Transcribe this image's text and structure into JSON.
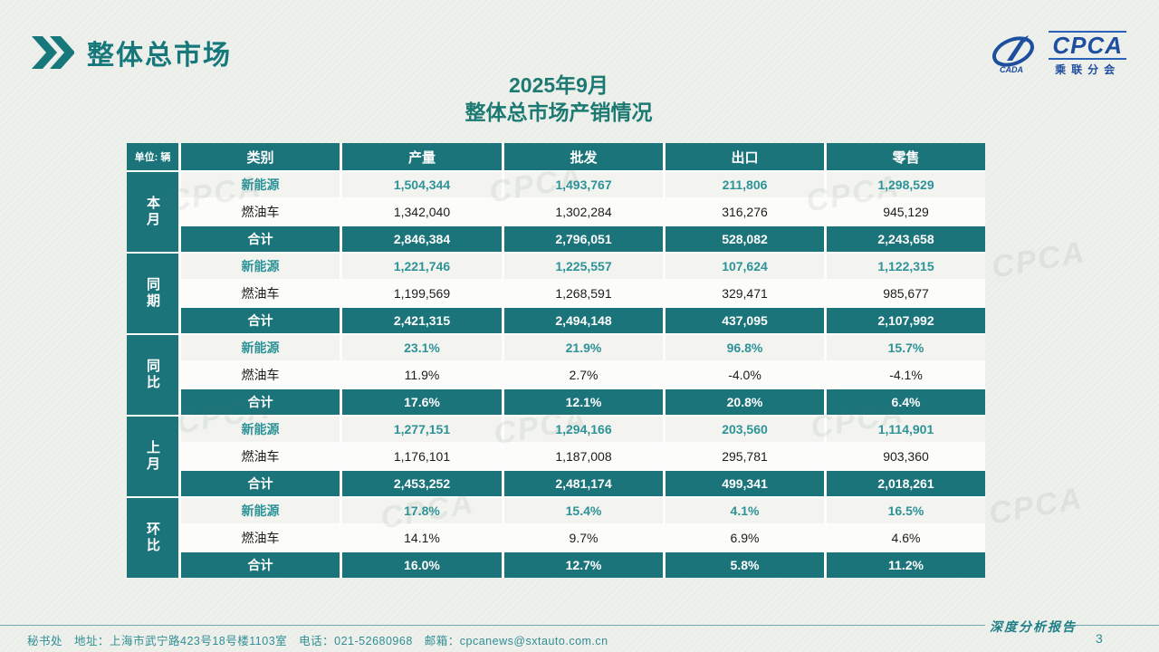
{
  "page": {
    "header_title": "整体总市场",
    "table_title_line1": "2025年9月",
    "table_title_line2": "整体总市场产销情况",
    "watermark": "CPCA",
    "page_number": "3"
  },
  "logo": {
    "name": "CPCA",
    "subtitle": "乘联分会",
    "brand_blue": "#1e4e9f"
  },
  "colors": {
    "teal_main": "#1a747a",
    "teal_text": "#2d9398",
    "title_teal": "#1c7a72"
  },
  "table": {
    "unit_label": "单位: 辆",
    "columns": [
      "类别",
      "产量",
      "批发",
      "出口",
      "零售"
    ],
    "groups": [
      {
        "label": "本月",
        "rows": [
          {
            "category": "新能源",
            "type": "nev",
            "values": [
              "1,504,344",
              "1,493,767",
              "211,806",
              "1,298,529"
            ]
          },
          {
            "category": "燃油车",
            "type": "fuel",
            "values": [
              "1,342,040",
              "1,302,284",
              "316,276",
              "945,129"
            ]
          },
          {
            "category": "合计",
            "type": "total",
            "values": [
              "2,846,384",
              "2,796,051",
              "528,082",
              "2,243,658"
            ]
          }
        ]
      },
      {
        "label": "同期",
        "rows": [
          {
            "category": "新能源",
            "type": "nev",
            "values": [
              "1,221,746",
              "1,225,557",
              "107,624",
              "1,122,315"
            ]
          },
          {
            "category": "燃油车",
            "type": "fuel",
            "values": [
              "1,199,569",
              "1,268,591",
              "329,471",
              "985,677"
            ]
          },
          {
            "category": "合计",
            "type": "total",
            "values": [
              "2,421,315",
              "2,494,148",
              "437,095",
              "2,107,992"
            ]
          }
        ]
      },
      {
        "label": "同比",
        "rows": [
          {
            "category": "新能源",
            "type": "nev",
            "values": [
              "23.1%",
              "21.9%",
              "96.8%",
              "15.7%"
            ]
          },
          {
            "category": "燃油车",
            "type": "fuel",
            "values": [
              "11.9%",
              "2.7%",
              "-4.0%",
              "-4.1%"
            ]
          },
          {
            "category": "合计",
            "type": "total",
            "values": [
              "17.6%",
              "12.1%",
              "20.8%",
              "6.4%"
            ]
          }
        ]
      },
      {
        "label": "上月",
        "rows": [
          {
            "category": "新能源",
            "type": "nev",
            "values": [
              "1,277,151",
              "1,294,166",
              "203,560",
              "1,114,901"
            ]
          },
          {
            "category": "燃油车",
            "type": "fuel",
            "values": [
              "1,176,101",
              "1,187,008",
              "295,781",
              "903,360"
            ]
          },
          {
            "category": "合计",
            "type": "total",
            "values": [
              "2,453,252",
              "2,481,174",
              "499,341",
              "2,018,261"
            ]
          }
        ]
      },
      {
        "label": "环比",
        "rows": [
          {
            "category": "新能源",
            "type": "nev",
            "values": [
              "17.8%",
              "15.4%",
              "4.1%",
              "16.5%"
            ]
          },
          {
            "category": "燃油车",
            "type": "fuel",
            "values": [
              "14.1%",
              "9.7%",
              "6.9%",
              "4.6%"
            ]
          },
          {
            "category": "合计",
            "type": "total",
            "values": [
              "16.0%",
              "12.7%",
              "5.8%",
              "11.2%"
            ]
          }
        ]
      }
    ]
  },
  "footer": {
    "left": "秘书处　地址：上海市武宁路423号18号楼1103室　电话：021-52680968　邮箱：cpcanews@sxtauto.com.cn",
    "right": "深度分析报告"
  }
}
